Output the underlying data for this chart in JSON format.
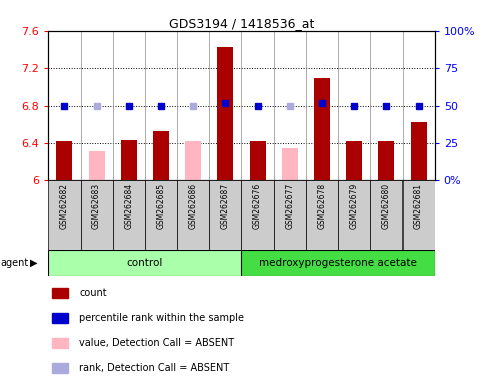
{
  "title": "GDS3194 / 1418536_at",
  "samples": [
    "GSM262682",
    "GSM262683",
    "GSM262684",
    "GSM262685",
    "GSM262686",
    "GSM262687",
    "GSM262676",
    "GSM262677",
    "GSM262678",
    "GSM262679",
    "GSM262680",
    "GSM262681"
  ],
  "bar_values": [
    6.42,
    null,
    6.43,
    6.53,
    null,
    7.43,
    6.42,
    null,
    7.1,
    6.42,
    6.42,
    6.62
  ],
  "bar_absent_values": [
    null,
    6.32,
    null,
    null,
    6.42,
    null,
    null,
    6.35,
    null,
    null,
    null,
    null
  ],
  "rank_values": [
    50,
    50,
    50,
    50,
    50,
    52,
    50,
    50,
    52,
    50,
    50,
    50
  ],
  "rank_absent_values": [
    null,
    50,
    null,
    null,
    50,
    null,
    null,
    50,
    null,
    null,
    null,
    null
  ],
  "bar_color": "#AA0000",
  "bar_absent_color": "#FFB6C1",
  "rank_color": "#0000CC",
  "rank_absent_color": "#AAAADD",
  "ylim_left": [
    6.0,
    7.6
  ],
  "ylim_right": [
    0,
    100
  ],
  "yticks_left": [
    6.0,
    6.4,
    6.8,
    7.2,
    7.6
  ],
  "yticks_right": [
    0,
    25,
    50,
    75,
    100
  ],
  "ytick_labels_left": [
    "6",
    "6.4",
    "6.8",
    "7.2",
    "7.6"
  ],
  "ytick_labels_right": [
    "0%",
    "25",
    "50",
    "75",
    "100%"
  ],
  "group_control_label": "control",
  "group_treatment_label": "medroxyprogesterone acetate",
  "agent_label": "agent",
  "n_control": 6,
  "legend_items": [
    {
      "color": "#AA0000",
      "label": "count"
    },
    {
      "color": "#0000CC",
      "label": "percentile rank within the sample"
    },
    {
      "color": "#FFB6C1",
      "label": "value, Detection Call = ABSENT"
    },
    {
      "color": "#AAAADD",
      "label": "rank, Detection Call = ABSENT"
    }
  ],
  "control_bg": "#AAFFAA",
  "treatment_bg": "#44DD44",
  "sample_bg": "#CCCCCC",
  "grid_yticks": [
    6.4,
    6.8,
    7.2,
    7.6
  ],
  "bar_width": 0.5
}
